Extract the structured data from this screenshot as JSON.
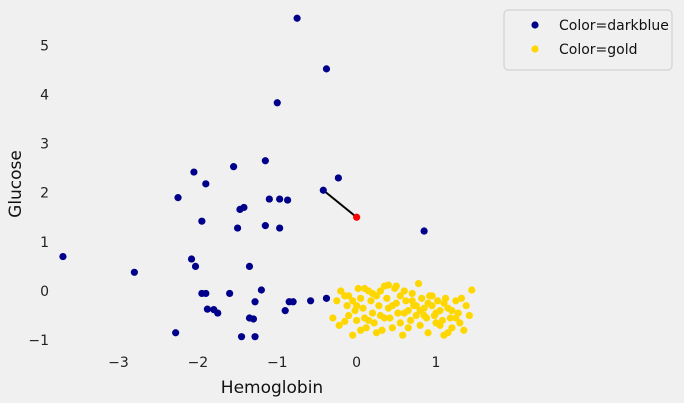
{
  "chart_data": {
    "type": "scatter",
    "xlabel": "Hemoglobin",
    "ylabel": "Glucose",
    "xlim": [
      -3.8,
      1.68
    ],
    "ylim": [
      -1.12,
      5.82
    ],
    "xticks": [
      -3,
      -2,
      -1,
      0,
      1
    ],
    "yticks": [
      -1,
      0,
      1,
      2,
      3,
      4,
      5
    ],
    "grid": true,
    "legend_position": "outside-top-right",
    "series": [
      {
        "name": "Color=darkblue",
        "color": "#00008b",
        "points": [
          [
            -0.75,
            5.55
          ],
          [
            -0.38,
            4.52
          ],
          [
            -1.0,
            3.83
          ],
          [
            -1.15,
            2.65
          ],
          [
            -1.55,
            2.53
          ],
          [
            -2.05,
            2.42
          ],
          [
            -0.23,
            2.3
          ],
          [
            -1.9,
            2.18
          ],
          [
            -0.42,
            2.05
          ],
          [
            -2.25,
            1.9
          ],
          [
            -1.1,
            1.87
          ],
          [
            -0.97,
            1.87
          ],
          [
            -0.87,
            1.85
          ],
          [
            -1.42,
            1.7
          ],
          [
            -1.47,
            1.66
          ],
          [
            -1.95,
            1.42
          ],
          [
            -1.15,
            1.33
          ],
          [
            -1.5,
            1.28
          ],
          [
            -0.97,
            1.28
          ],
          [
            0.85,
            1.22
          ],
          [
            -3.7,
            0.7
          ],
          [
            -2.08,
            0.65
          ],
          [
            -2.03,
            0.5
          ],
          [
            -1.35,
            0.5
          ],
          [
            -2.8,
            0.38
          ],
          [
            -1.2,
            0.02
          ],
          [
            -1.95,
            -0.05
          ],
          [
            -1.9,
            -0.05
          ],
          [
            -1.6,
            -0.05
          ],
          [
            -1.28,
            -0.22
          ],
          [
            -0.85,
            -0.22
          ],
          [
            -0.8,
            -0.22
          ],
          [
            -0.58,
            -0.2
          ],
          [
            -0.38,
            -0.15
          ],
          [
            -1.88,
            -0.37
          ],
          [
            -1.8,
            -0.38
          ],
          [
            -1.75,
            -0.45
          ],
          [
            -0.9,
            -0.4
          ],
          [
            -1.35,
            -0.55
          ],
          [
            -1.3,
            -0.57
          ],
          [
            -2.28,
            -0.85
          ],
          [
            -1.45,
            -0.93
          ],
          [
            -1.28,
            -0.93
          ]
        ]
      },
      {
        "name": "Color=gold",
        "color": "#ffd700",
        "points": [
          [
            -0.25,
            -0.2
          ],
          [
            -0.2,
            0.0
          ],
          [
            -0.15,
            -0.1
          ],
          [
            -0.12,
            -0.3
          ],
          [
            -0.1,
            -0.5
          ],
          [
            -0.05,
            -0.2
          ],
          [
            -0.02,
            -0.4
          ],
          [
            0.0,
            -0.6
          ],
          [
            0.02,
            0.05
          ],
          [
            0.05,
            -0.15
          ],
          [
            0.08,
            -0.35
          ],
          [
            0.1,
            -0.55
          ],
          [
            0.12,
            -0.75
          ],
          [
            0.15,
            0.0
          ],
          [
            0.18,
            -0.2
          ],
          [
            0.2,
            -0.45
          ],
          [
            0.22,
            -0.65
          ],
          [
            0.25,
            -0.1
          ],
          [
            0.28,
            -0.3
          ],
          [
            0.3,
            -0.5
          ],
          [
            0.32,
            -0.8
          ],
          [
            0.35,
            0.1
          ],
          [
            0.38,
            -0.15
          ],
          [
            0.4,
            -0.35
          ],
          [
            0.42,
            -0.55
          ],
          [
            0.45,
            -0.75
          ],
          [
            0.48,
            0.05
          ],
          [
            0.5,
            -0.25
          ],
          [
            0.52,
            -0.45
          ],
          [
            0.55,
            -0.65
          ],
          [
            0.58,
            -0.9
          ],
          [
            0.6,
            0.0
          ],
          [
            0.62,
            -0.2
          ],
          [
            0.65,
            -0.4
          ],
          [
            0.68,
            -0.6
          ],
          [
            0.7,
            -0.05
          ],
          [
            0.72,
            -0.3
          ],
          [
            0.75,
            -0.5
          ],
          [
            0.78,
            0.15
          ],
          [
            0.8,
            -0.7
          ],
          [
            0.82,
            -0.15
          ],
          [
            0.85,
            -0.35
          ],
          [
            0.88,
            -0.55
          ],
          [
            0.9,
            -0.85
          ],
          [
            0.92,
            -0.1
          ],
          [
            0.95,
            -0.3
          ],
          [
            0.98,
            -0.5
          ],
          [
            1.0,
            -0.65
          ],
          [
            1.02,
            -0.2
          ],
          [
            1.05,
            -0.4
          ],
          [
            1.08,
            -0.6
          ],
          [
            1.1,
            -0.9
          ],
          [
            1.12,
            -0.15
          ],
          [
            1.15,
            -0.35
          ],
          [
            1.18,
            -0.55
          ],
          [
            1.2,
            -0.75
          ],
          [
            1.25,
            -0.2
          ],
          [
            1.28,
            -0.45
          ],
          [
            1.3,
            -0.65
          ],
          [
            1.35,
            -0.8
          ],
          [
            1.38,
            -0.3
          ],
          [
            1.42,
            -0.5
          ],
          [
            1.45,
            0.02
          ],
          [
            -0.3,
            -0.55
          ],
          [
            -0.22,
            -0.7
          ],
          [
            -0.15,
            -0.62
          ],
          [
            -0.05,
            -0.9
          ],
          [
            0.05,
            -0.8
          ],
          [
            0.15,
            -0.6
          ],
          [
            0.25,
            -0.85
          ],
          [
            0.35,
            -0.55
          ],
          [
            0.45,
            -0.3
          ],
          [
            0.55,
            -0.1
          ],
          [
            0.65,
            -0.75
          ],
          [
            0.75,
            -0.3
          ],
          [
            0.85,
            -0.5
          ],
          [
            0.95,
            -0.1
          ],
          [
            1.05,
            -0.7
          ],
          [
            1.15,
            -0.85
          ],
          [
            1.25,
            -0.55
          ],
          [
            -0.1,
            -0.1
          ],
          [
            0.0,
            -0.3
          ],
          [
            0.1,
            0.05
          ],
          [
            0.2,
            -0.05
          ],
          [
            0.3,
            0.0
          ],
          [
            0.4,
            0.12
          ],
          [
            0.5,
            0.1
          ],
          [
            0.6,
            -0.45
          ],
          [
            0.7,
            -0.2
          ],
          [
            0.8,
            -0.4
          ],
          [
            0.9,
            -0.25
          ],
          [
            1.0,
            -0.45
          ],
          [
            1.1,
            -0.25
          ],
          [
            1.2,
            -0.4
          ],
          [
            1.32,
            -0.15
          ]
        ]
      },
      {
        "name": "",
        "color": "#ff0000",
        "points": [
          [
            0.0,
            1.5
          ]
        ]
      }
    ],
    "lines": [
      {
        "from": [
          -0.42,
          2.05
        ],
        "to": [
          0.0,
          1.5
        ],
        "color": "#000000"
      }
    ]
  }
}
